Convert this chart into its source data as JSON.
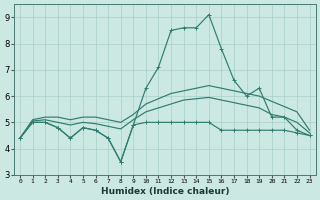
{
  "xlabel": "Humidex (Indice chaleur)",
  "x": [
    0,
    1,
    2,
    3,
    4,
    5,
    6,
    7,
    8,
    9,
    10,
    11,
    12,
    13,
    14,
    15,
    16,
    17,
    18,
    19,
    20,
    21,
    22,
    23
  ],
  "line_spike": [
    4.4,
    5.0,
    5.0,
    4.8,
    4.4,
    4.8,
    4.7,
    4.4,
    3.5,
    4.9,
    6.3,
    7.1,
    8.5,
    8.6,
    8.6,
    9.1,
    7.8,
    6.6,
    6.0,
    6.3,
    5.2,
    5.2,
    4.7,
    4.5
  ],
  "line_flat": [
    4.4,
    5.0,
    5.0,
    4.8,
    4.4,
    4.8,
    4.7,
    4.4,
    3.5,
    4.9,
    5.0,
    5.0,
    5.0,
    5.0,
    5.0,
    5.0,
    4.7,
    4.7,
    4.7,
    4.7,
    4.7,
    4.7,
    4.6,
    4.5
  ],
  "line_upper": [
    4.4,
    5.1,
    5.2,
    5.2,
    5.1,
    5.2,
    5.2,
    5.1,
    5.0,
    5.3,
    5.7,
    5.9,
    6.1,
    6.2,
    6.3,
    6.4,
    6.3,
    6.2,
    6.1,
    6.0,
    5.8,
    5.6,
    5.4,
    4.7
  ],
  "line_mid": [
    4.4,
    5.05,
    5.1,
    5.0,
    4.9,
    5.0,
    4.95,
    4.85,
    4.75,
    5.1,
    5.4,
    5.55,
    5.7,
    5.85,
    5.9,
    5.95,
    5.85,
    5.75,
    5.65,
    5.55,
    5.3,
    5.2,
    5.0,
    4.6
  ],
  "line_color": "#2e7d6e",
  "bg_color": "#cce8e3",
  "grid_color": "#aacfc9",
  "ylim": [
    3,
    9.5
  ],
  "yticks": [
    3,
    4,
    5,
    6,
    7,
    8,
    9
  ],
  "xticks": [
    0,
    1,
    2,
    3,
    4,
    5,
    6,
    7,
    8,
    9,
    10,
    11,
    12,
    13,
    14,
    15,
    16,
    17,
    18,
    19,
    20,
    21,
    22,
    23
  ]
}
